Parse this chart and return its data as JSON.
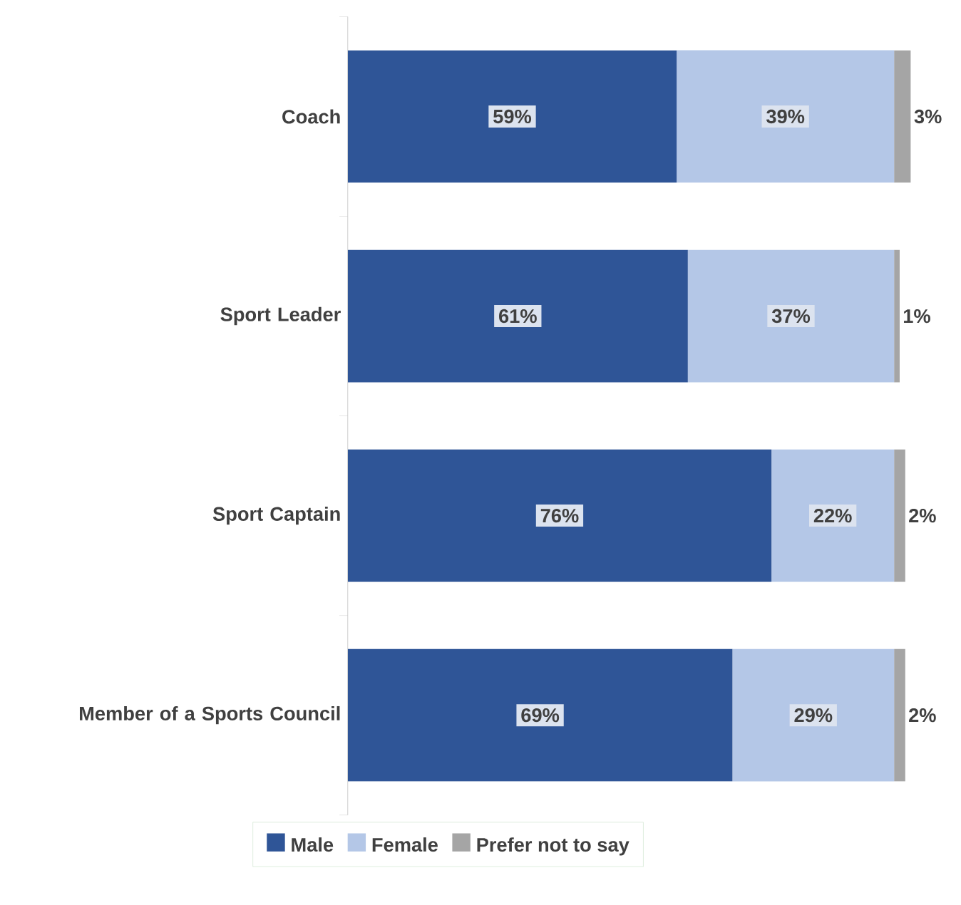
{
  "chart_data": {
    "type": "bar",
    "orientation": "horizontal",
    "stacked": true,
    "legend": "bottom",
    "categories": [
      "Coach",
      "Sport Leader",
      "Sport Captain",
      "Member of a Sports Council"
    ],
    "series": [
      {
        "name": "Male",
        "color": "#2f5597",
        "values": [
          59,
          61,
          76,
          69
        ],
        "value_labels": [
          "59%",
          "61%",
          "76%",
          "69%"
        ]
      },
      {
        "name": "Female",
        "color": "#b4c7e7",
        "values": [
          39,
          37,
          22,
          29
        ],
        "value_labels": [
          "39%",
          "37%",
          "22%",
          "29%"
        ]
      },
      {
        "name": "Prefer not to say",
        "color": "#a5a5a5",
        "values": [
          3,
          1,
          2,
          2
        ],
        "value_labels": [
          "3%",
          "1%",
          "2%",
          "2%"
        ]
      }
    ]
  }
}
